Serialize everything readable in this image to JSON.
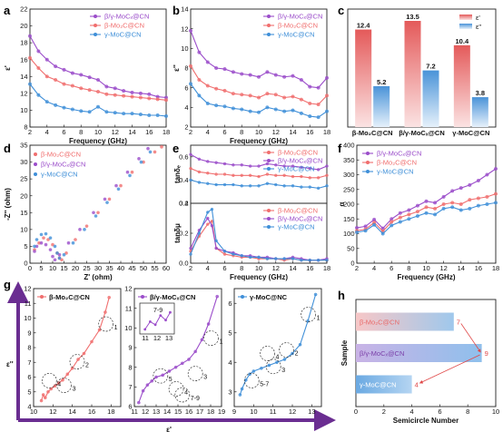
{
  "colors": {
    "beta": "#f06e6e",
    "betagamma": "#9b4dca",
    "gamma": "#3f8fd8",
    "panel_g_axis": "#6a2d91"
  },
  "series_labels": {
    "beta": "β-Mo₂C@CN",
    "betagamma": "β/γ-MoCₓ@CN",
    "gamma": "γ-MoC@CN",
    "gamma_alt": "γ-MoC@NC"
  },
  "panel_labels": [
    "a",
    "b",
    "c",
    "d",
    "e",
    "f",
    "g",
    "h"
  ],
  "chart_data": [
    {
      "panel": "a",
      "type": "line",
      "xlabel": "Frequency (GHz)",
      "ylabel": "ε'",
      "xlim": [
        2,
        18
      ],
      "ylim": [
        8,
        22
      ],
      "xticks": [
        "2",
        "4",
        "6",
        "8",
        "10",
        "12",
        "14",
        "16",
        "18"
      ],
      "yticks": [
        "8",
        "10",
        "12",
        "14",
        "16",
        "18",
        "20",
        "22"
      ],
      "legend_placement": "top-right",
      "x": [
        2,
        3,
        4,
        5,
        6,
        7,
        8,
        9,
        10,
        11,
        12,
        13,
        14,
        15,
        16,
        17,
        18
      ],
      "series": [
        {
          "name": "β/γ-MoCₓ@CN",
          "values": [
            18.8,
            17.0,
            16.0,
            15.2,
            14.8,
            14.4,
            14.2,
            13.9,
            13.6,
            12.8,
            12.6,
            12.3,
            12.1,
            12.0,
            11.9,
            11.6,
            11.5
          ]
        },
        {
          "name": "β-Mo₂C@CN",
          "values": [
            16.2,
            15.0,
            14.0,
            13.6,
            13.1,
            12.9,
            12.6,
            12.4,
            12.2,
            11.9,
            11.8,
            11.7,
            11.6,
            11.5,
            11.4,
            11.3,
            11.2
          ]
        },
        {
          "name": "γ-MoC@CN",
          "values": [
            13.1,
            11.8,
            11.0,
            10.6,
            10.3,
            10.1,
            9.9,
            9.8,
            10.4,
            9.8,
            9.7,
            9.6,
            9.6,
            9.5,
            9.4,
            9.4,
            9.3
          ]
        }
      ]
    },
    {
      "panel": "b",
      "type": "line",
      "xlabel": "Frequency (GHz)",
      "ylabel": "ε''",
      "xlim": [
        2,
        18
      ],
      "ylim": [
        2,
        14
      ],
      "xticks": [
        "2",
        "4",
        "6",
        "8",
        "10",
        "12",
        "14",
        "16",
        "18"
      ],
      "yticks": [
        "2",
        "4",
        "6",
        "8",
        "10",
        "12",
        "14"
      ],
      "legend_placement": "top-right",
      "x": [
        2,
        3,
        4,
        5,
        6,
        7,
        8,
        9,
        10,
        11,
        12,
        13,
        14,
        15,
        16,
        17,
        18
      ],
      "series": [
        {
          "name": "β/γ-MoCₓ@CN",
          "values": [
            11.8,
            9.6,
            8.6,
            8.0,
            7.9,
            7.6,
            7.4,
            7.3,
            7.1,
            7.6,
            7.3,
            7.1,
            7.2,
            6.8,
            6.1,
            6.0,
            7.0
          ]
        },
        {
          "name": "β-Mo₂C@CN",
          "values": [
            8.2,
            6.8,
            6.2,
            5.9,
            5.7,
            5.4,
            5.3,
            5.2,
            5.0,
            5.4,
            5.3,
            5.0,
            5.1,
            4.8,
            4.4,
            4.3,
            5.2
          ]
        },
        {
          "name": "γ-MoC@CN",
          "values": [
            6.4,
            5.2,
            4.4,
            4.2,
            4.1,
            3.9,
            3.8,
            3.6,
            3.5,
            4.0,
            3.8,
            3.6,
            3.7,
            3.4,
            3.1,
            3.0,
            3.6
          ]
        }
      ]
    },
    {
      "panel": "c",
      "type": "bar",
      "categories": [
        "β-Mo₂C@CN",
        "β/γ-MoCₓ@CN",
        "γ-MoC@CN"
      ],
      "series": [
        {
          "name": "ε'",
          "values": [
            12.4,
            13.5,
            10.4
          ]
        },
        {
          "name": "ε''",
          "values": [
            5.2,
            7.2,
            3.8
          ]
        }
      ],
      "ylim": [
        0,
        15
      ],
      "legend_placement": "top-right"
    },
    {
      "panel": "d",
      "type": "scatter",
      "xlabel": "Z' (ohm)",
      "ylabel": "-Z'' (ohm)",
      "xlim": [
        0,
        60
      ],
      "ylim": [
        0,
        35
      ],
      "xticks": [
        "0",
        "5",
        "10",
        "15",
        "20",
        "25",
        "30",
        "35",
        "40",
        "45",
        "50",
        "55",
        "60"
      ],
      "yticks": [
        "0",
        "5",
        "10",
        "15",
        "20",
        "25",
        "30",
        "35"
      ],
      "legend_placement": "top-left",
      "series": [
        {
          "name": "β-Mo₂C@CN",
          "points": [
            [
              2,
              4
            ],
            [
              4,
              6
            ],
            [
              6,
              7.5
            ],
            [
              8,
              7
            ],
            [
              10,
              5.5
            ],
            [
              12,
              3
            ],
            [
              13,
              1.5
            ],
            [
              14,
              1
            ],
            [
              16,
              3
            ],
            [
              20,
              7
            ],
            [
              25,
              11
            ],
            [
              30,
              15
            ],
            [
              35,
              19
            ],
            [
              40,
              23
            ],
            [
              45,
              27
            ],
            [
              50,
              30
            ],
            [
              55,
              33
            ],
            [
              58,
              34.5
            ]
          ]
        },
        {
          "name": "β/γ-MoCₓ@CN",
          "points": [
            [
              2,
              3.5
            ],
            [
              3,
              5
            ],
            [
              5,
              6
            ],
            [
              7,
              5.5
            ],
            [
              9,
              4
            ],
            [
              10,
              2
            ],
            [
              11,
              1
            ],
            [
              13,
              2.5
            ],
            [
              17,
              6
            ],
            [
              22,
              10
            ],
            [
              28,
              15
            ],
            [
              33,
              19
            ],
            [
              38,
              23
            ],
            [
              43,
              27
            ],
            [
              48,
              31
            ],
            [
              52,
              34
            ]
          ]
        },
        {
          "name": "γ-MoC@CN",
          "points": [
            [
              2,
              5
            ],
            [
              3,
              7
            ],
            [
              5,
              8.5
            ],
            [
              7,
              8.7
            ],
            [
              9,
              7.5
            ],
            [
              11,
              5
            ],
            [
              12,
              3
            ],
            [
              13,
              1.5
            ],
            [
              15,
              2.5
            ],
            [
              19,
              6
            ],
            [
              24,
              10
            ],
            [
              29,
              14
            ],
            [
              34,
              18
            ],
            [
              39,
              22
            ],
            [
              44,
              26
            ],
            [
              49,
              30
            ],
            [
              53,
              33
            ]
          ]
        }
      ]
    },
    {
      "panel": "e",
      "type": "line",
      "xlabel": "Frequency (GHz)",
      "xlim": [
        2,
        18
      ],
      "xticks": [
        "2",
        "4",
        "6",
        "8",
        "10",
        "12",
        "14",
        "16",
        "18"
      ],
      "top": {
        "ylabel": "tanδₑ",
        "ylim": [
          0.2,
          0.7
        ],
        "yticks": [
          "0.2",
          "0.4",
          "0.6"
        ],
        "legend_placement": "top-right",
        "x": [
          2,
          3,
          4,
          5,
          6,
          7,
          8,
          9,
          10,
          11,
          12,
          13,
          14,
          15,
          16,
          17,
          18
        ],
        "series": [
          {
            "name": "β-Mo₂C@CN",
            "values": [
              0.5,
              0.47,
              0.46,
              0.45,
              0.45,
              0.44,
              0.44,
              0.44,
              0.43,
              0.45,
              0.44,
              0.44,
              0.43,
              0.43,
              0.42,
              0.42,
              0.44
            ]
          },
          {
            "name": "β/γ-MoCₓ@CN",
            "values": [
              0.62,
              0.58,
              0.56,
              0.55,
              0.54,
              0.53,
              0.53,
              0.52,
              0.52,
              0.54,
              0.53,
              0.52,
              0.52,
              0.51,
              0.5,
              0.49,
              0.52
            ]
          },
          {
            "name": "γ-MoC@CN",
            "values": [
              0.4,
              0.38,
              0.37,
              0.36,
              0.36,
              0.36,
              0.35,
              0.35,
              0.35,
              0.37,
              0.36,
              0.35,
              0.35,
              0.34,
              0.34,
              0.33,
              0.35
            ]
          }
        ]
      },
      "bottom": {
        "ylabel": "tanδμ",
        "ylim": [
          0.0,
          0.4
        ],
        "yticks": [
          "0.0",
          "0.2",
          "0.4"
        ],
        "legend_placement": "top-right",
        "x": [
          2,
          3,
          4,
          4.5,
          5,
          6,
          7,
          8,
          9,
          10,
          11,
          12,
          13,
          14,
          15,
          16,
          17,
          18
        ],
        "series": [
          {
            "name": "β-Mo₂C@CN",
            "values": [
              0.08,
              0.18,
              0.26,
              0.28,
              0.1,
              0.06,
              0.05,
              0.04,
              0.04,
              0.03,
              0.03,
              0.03,
              0.02,
              0.03,
              0.02,
              0.02,
              0.02,
              0.02
            ]
          },
          {
            "name": "β/γ-MoCₓ@CN",
            "values": [
              0.1,
              0.22,
              0.3,
              0.25,
              0.1,
              0.08,
              0.07,
              0.05,
              0.05,
              0.04,
              0.04,
              0.03,
              0.03,
              0.04,
              0.03,
              0.02,
              0.02,
              0.03
            ]
          },
          {
            "name": "γ-MoC@CN",
            "values": [
              0.06,
              0.2,
              0.34,
              0.36,
              0.15,
              0.08,
              0.06,
              0.05,
              0.04,
              0.04,
              0.03,
              0.03,
              0.03,
              0.03,
              0.02,
              0.02,
              0.02,
              0.02
            ]
          }
        ]
      }
    },
    {
      "panel": "f",
      "type": "line",
      "xlabel": "Frequency (GHz)",
      "ylabel": "α",
      "xlim": [
        2,
        18
      ],
      "ylim": [
        0,
        400
      ],
      "xticks": [
        "2",
        "4",
        "6",
        "8",
        "10",
        "12",
        "14",
        "16",
        "18"
      ],
      "yticks": [
        "0",
        "50",
        "100",
        "150",
        "200",
        "250",
        "300",
        "350",
        "400"
      ],
      "legend_placement": "top-left",
      "x": [
        2,
        3,
        4,
        5,
        6,
        7,
        8,
        9,
        10,
        11,
        12,
        13,
        14,
        15,
        16,
        17,
        18
      ],
      "series": [
        {
          "name": "β/γ-MoCₓ@CN",
          "values": [
            120,
            125,
            148,
            118,
            150,
            170,
            180,
            195,
            210,
            205,
            225,
            245,
            255,
            265,
            280,
            300,
            320
          ]
        },
        {
          "name": "β-Mo₂C@CN",
          "values": [
            110,
            115,
            138,
            108,
            140,
            155,
            165,
            175,
            190,
            185,
            200,
            205,
            200,
            215,
            220,
            225,
            235
          ]
        },
        {
          "name": "γ-MoC@CN",
          "values": [
            105,
            110,
            130,
            100,
            128,
            140,
            150,
            160,
            170,
            165,
            185,
            190,
            180,
            185,
            195,
            200,
            205
          ]
        }
      ]
    },
    {
      "panel": "g",
      "type": "line",
      "xlabel": "ε'",
      "ylabel": "ε''",
      "sub_plots": [
        {
          "name": "β-Mo₂C@CN",
          "xlim": [
            10,
            19
          ],
          "ylim": [
            4,
            12
          ],
          "xticks": [
            "10",
            "12",
            "14",
            "16",
            "18"
          ],
          "yticks": [
            "4",
            "5",
            "6",
            "7",
            "8",
            "9",
            "10",
            "11",
            "12"
          ],
          "x": [
            10.8,
            11.0,
            11.2,
            11.5,
            11.8,
            12.2,
            12.6,
            13.0,
            13.5,
            14.0,
            14.6,
            15.2,
            16.0,
            16.8,
            17.4,
            17.8
          ],
          "y": [
            4.4,
            4.8,
            4.6,
            5.0,
            5.2,
            5.4,
            5.6,
            5.8,
            6.2,
            6.6,
            7.2,
            7.6,
            8.4,
            9.2,
            10.4,
            11.4
          ],
          "annotations": [
            "1",
            "2",
            "3",
            "4"
          ]
        },
        {
          "name": "β/γ-MoCₓ@CN",
          "xlim": [
            11,
            19
          ],
          "ylim": [
            6,
            12
          ],
          "xticks": [
            "11",
            "12",
            "13",
            "14",
            "15",
            "16",
            "17",
            "18",
            "19"
          ],
          "yticks": [
            "6",
            "7",
            "8",
            "9",
            "10",
            "11",
            "12"
          ],
          "x": [
            11.4,
            11.8,
            12.2,
            12.6,
            13.0,
            13.6,
            14.2,
            14.8,
            15.4,
            16.0,
            16.6,
            17.2,
            17.8,
            18.6
          ],
          "y": [
            6.2,
            6.8,
            7.1,
            7.3,
            7.5,
            7.6,
            7.8,
            8.0,
            8.2,
            8.4,
            8.8,
            9.4,
            10.2,
            11.6
          ],
          "annotations": [
            "1",
            "3",
            "4",
            "5",
            "7-9"
          ],
          "inset": {
            "xticks": [
              "11",
              "12",
              "13"
            ],
            "annotation": "7-9"
          }
        },
        {
          "name": "γ-MoC@NC",
          "xlim": [
            9,
            13.5
          ],
          "ylim": [
            2.5,
            6.5
          ],
          "xticks": [
            "9",
            "10",
            "11",
            "12",
            "13"
          ],
          "yticks": [
            "3",
            "4",
            "5",
            "6"
          ],
          "x": [
            9.3,
            9.4,
            9.6,
            9.8,
            10.0,
            10.4,
            10.8,
            11.2,
            11.6,
            12.0,
            12.4,
            12.8,
            13.2
          ],
          "y": [
            2.9,
            3.1,
            3.4,
            3.6,
            3.7,
            3.8,
            3.9,
            4.0,
            4.1,
            4.3,
            4.6,
            5.4,
            6.3
          ],
          "annotations": [
            "1",
            "2",
            "3",
            "4",
            "5-7"
          ]
        }
      ]
    },
    {
      "panel": "h",
      "type": "bar",
      "orientation": "horizontal",
      "xlabel": "Semicircle Number",
      "ylabel": "Sample",
      "xlim": [
        0,
        10
      ],
      "xticks": [
        "0",
        "2",
        "4",
        "6",
        "8",
        "10"
      ],
      "categories": [
        "β-Mo₂C@CN",
        "β/γ-MoCₓ@CN",
        "γ-MoC@CN"
      ],
      "values": [
        7,
        9,
        4
      ]
    }
  ]
}
